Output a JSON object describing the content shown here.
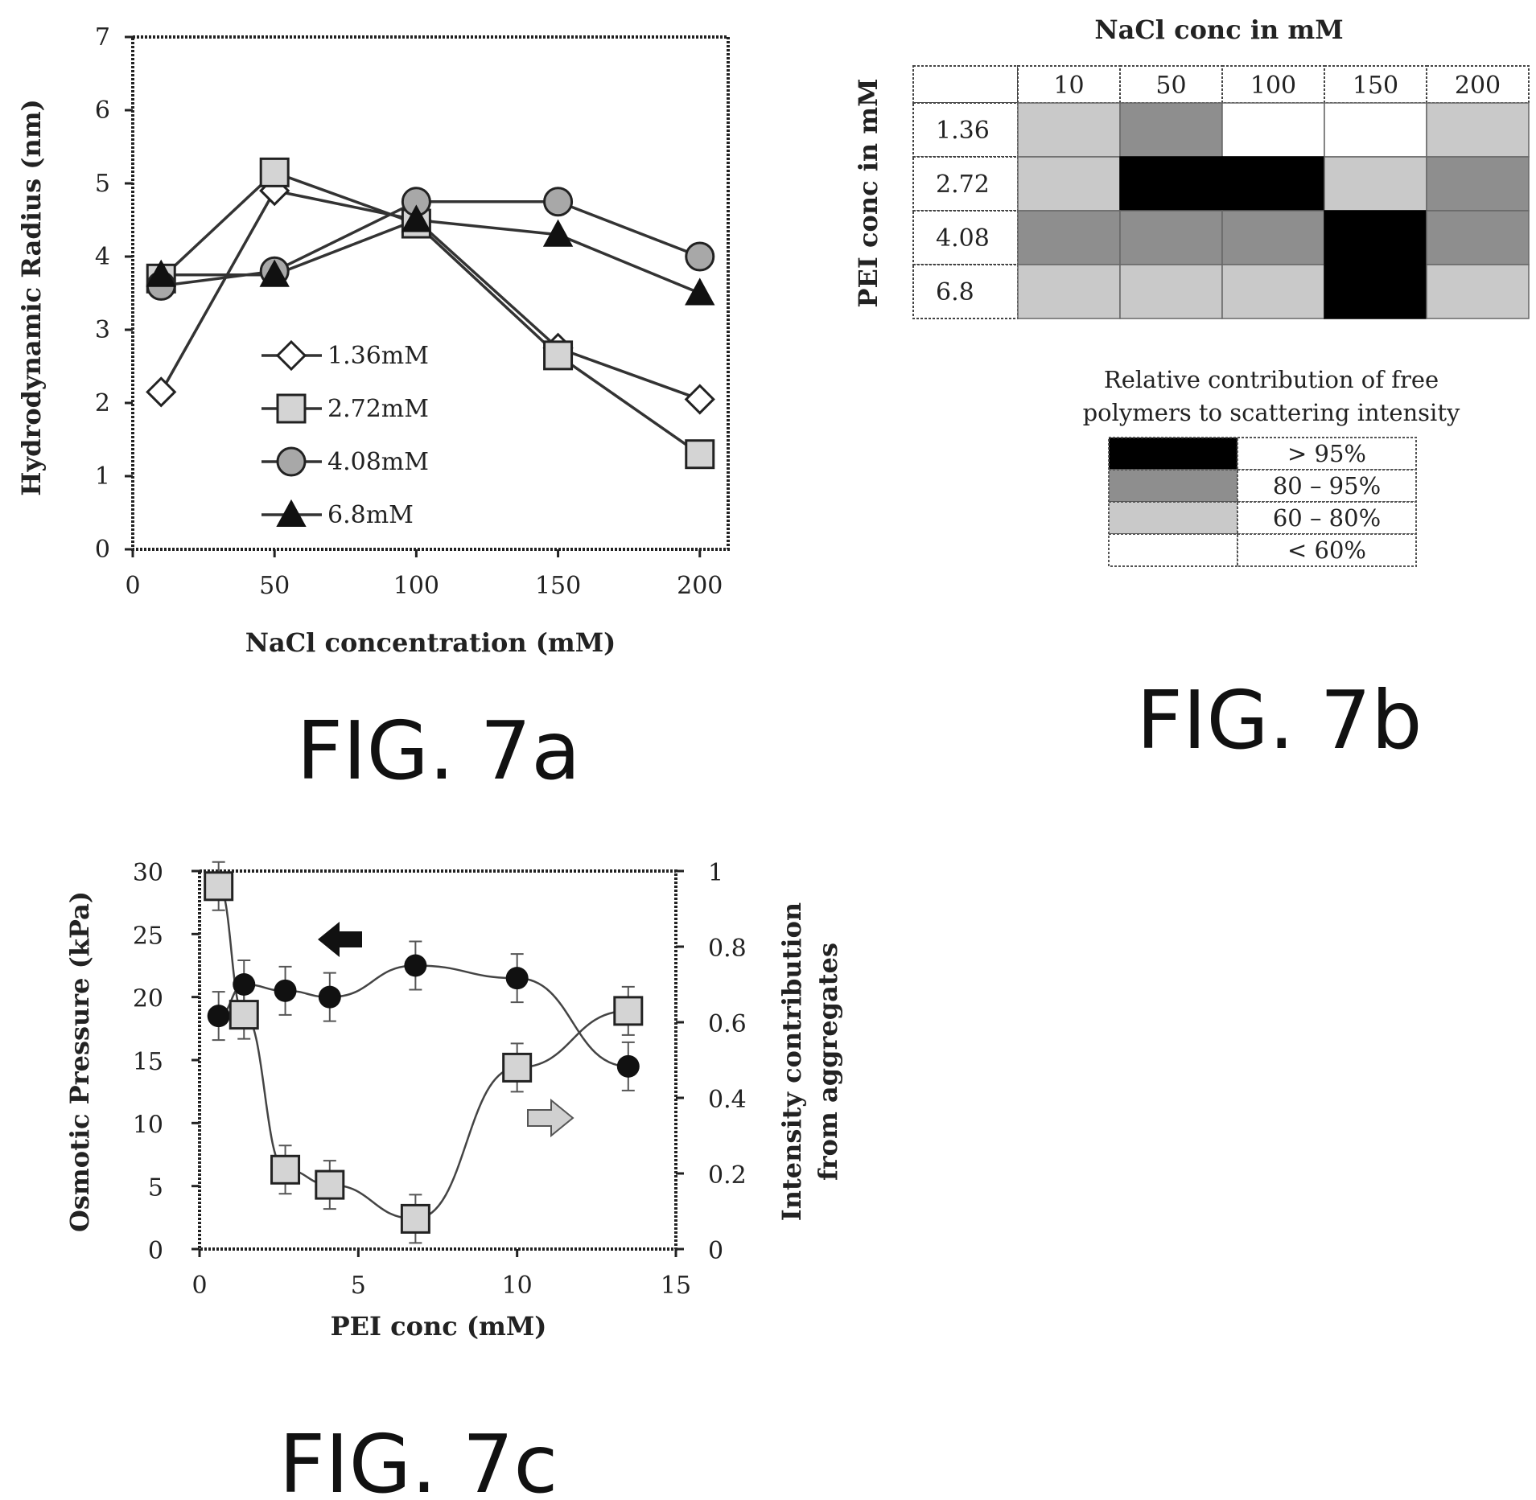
{
  "figure_labels": {
    "a": "FIG. 7a",
    "b": "FIG. 7b",
    "c": "FIG. 7c"
  },
  "chart_data": [
    {
      "id": "fig7a",
      "type": "line",
      "xlabel": "NaCl concentration (mM)",
      "ylabel": "Hydrodynamic Radius (nm)",
      "xlim": [
        0,
        210
      ],
      "ylim": [
        0,
        7
      ],
      "x_ticks": [
        "0",
        "50",
        "100",
        "150",
        "200"
      ],
      "y_ticks": [
        "0",
        "1",
        "2",
        "3",
        "4",
        "5",
        "6",
        "7"
      ],
      "x": [
        10,
        50,
        100,
        150,
        200
      ],
      "series": [
        {
          "name": "1.36mM",
          "marker": "diamond-open",
          "values": [
            2.15,
            4.9,
            4.5,
            2.75,
            2.05
          ]
        },
        {
          "name": "2.72mM",
          "marker": "square-grey",
          "values": [
            3.7,
            5.15,
            4.45,
            2.65,
            1.3
          ]
        },
        {
          "name": "4.08mM",
          "marker": "circle-grey",
          "values": [
            3.6,
            3.8,
            4.75,
            4.75,
            4.0
          ]
        },
        {
          "name": "6.8mM",
          "marker": "triangle-black",
          "values": [
            3.75,
            3.75,
            4.5,
            4.3,
            3.5
          ]
        }
      ],
      "legend_position": "center"
    },
    {
      "id": "fig7b",
      "type": "heatmap",
      "title": "NaCl conc in mM",
      "ylabel": "PEI conc in mM",
      "columns": [
        "10",
        "50",
        "100",
        "150",
        "200"
      ],
      "rows": [
        "1.36",
        "2.72",
        "4.08",
        "6.8"
      ],
      "levels": [
        [
          2,
          3,
          0,
          0,
          2
        ],
        [
          2,
          4,
          4,
          2,
          3
        ],
        [
          3,
          3,
          3,
          4,
          3
        ],
        [
          2,
          2,
          2,
          4,
          2
        ]
      ],
      "level_colors": [
        "#ffffff",
        "#e8e8e8",
        "#c9c9c9",
        "#8e8e8e",
        "#000000"
      ],
      "legend_title_line1": "Relative contribution of free",
      "legend_title_line2": "polymers to scattering intensity",
      "legend": [
        {
          "label": "> 95%",
          "level": 4
        },
        {
          "label": "80 – 95%",
          "level": 3
        },
        {
          "label": "60 – 80%",
          "level": 2
        },
        {
          "label": "< 60%",
          "level": 0
        }
      ]
    },
    {
      "id": "fig7c",
      "type": "scatter",
      "xlabel": "PEI conc (mM)",
      "ylabel": "Osmotic Pressure (kPa)",
      "y2label_line1": "Intensity contribution",
      "y2label_line2": "from aggregates",
      "xlim": [
        0,
        15
      ],
      "ylim": [
        0,
        30
      ],
      "y2lim": [
        0,
        1
      ],
      "x_ticks": [
        "0",
        "5",
        "10",
        "15"
      ],
      "y_ticks": [
        "0",
        "5",
        "10",
        "15",
        "20",
        "25",
        "30"
      ],
      "y2_ticks": [
        "0",
        "0.2",
        "0.4",
        "0.6",
        "0.8",
        "1"
      ],
      "series": [
        {
          "marker": "circle-black",
          "axis": "left",
          "x": [
            0.6,
            1.4,
            2.7,
            4.1,
            6.8,
            10.0,
            13.5
          ],
          "values": [
            18.5,
            21.0,
            20.5,
            20.0,
            22.5,
            21.5,
            14.5
          ]
        },
        {
          "marker": "square-grey",
          "axis": "right",
          "x": [
            0.6,
            1.4,
            2.7,
            4.1,
            6.8,
            10.0,
            13.5
          ],
          "values": [
            0.96,
            0.62,
            0.21,
            0.17,
            0.08,
            0.48,
            0.63
          ]
        }
      ]
    }
  ]
}
